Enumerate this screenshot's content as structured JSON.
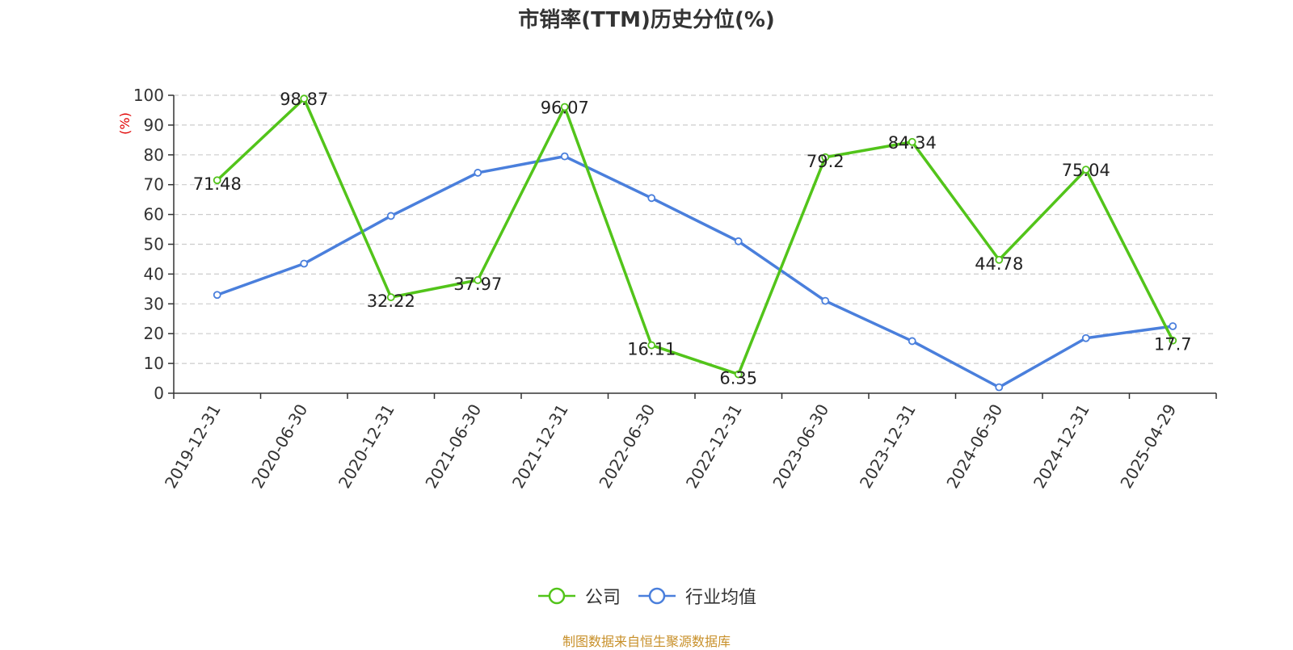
{
  "chart_data": {
    "type": "line",
    "title": "市销率(TTM)历史分位(%)",
    "ylabel": "(%)",
    "ylim": [
      0,
      100
    ],
    "yticks": [
      0,
      10,
      20,
      30,
      40,
      50,
      60,
      70,
      80,
      90,
      100
    ],
    "categories": [
      "2019-12-31",
      "2020-06-30",
      "2020-12-31",
      "2021-06-30",
      "2021-12-31",
      "2022-06-30",
      "2022-12-31",
      "2023-06-30",
      "2023-12-31",
      "2024-06-30",
      "2024-12-31",
      "2025-04-29"
    ],
    "series": [
      {
        "name": "公司",
        "color": "#52c41a",
        "show_labels": true,
        "values": [
          71.48,
          98.87,
          32.22,
          37.97,
          96.07,
          16.11,
          6.35,
          79.2,
          84.34,
          44.78,
          75.04,
          17.7
        ],
        "labels": [
          "71.48",
          "98.87",
          "32.22",
          "37.97",
          "96.07",
          "16.11",
          "6.35",
          "79.2",
          "84.34",
          "44.78",
          "75.04",
          "17.7"
        ]
      },
      {
        "name": "行业均值",
        "color": "#4a7fdc",
        "show_labels": false,
        "values": [
          33,
          43.5,
          59.5,
          74,
          79.5,
          65.5,
          51,
          31,
          17.5,
          2,
          18.5,
          22.5
        ]
      }
    ],
    "grid": true,
    "legend_position": "bottom-center",
    "source": "制图数据来自恒生聚源数据库"
  }
}
